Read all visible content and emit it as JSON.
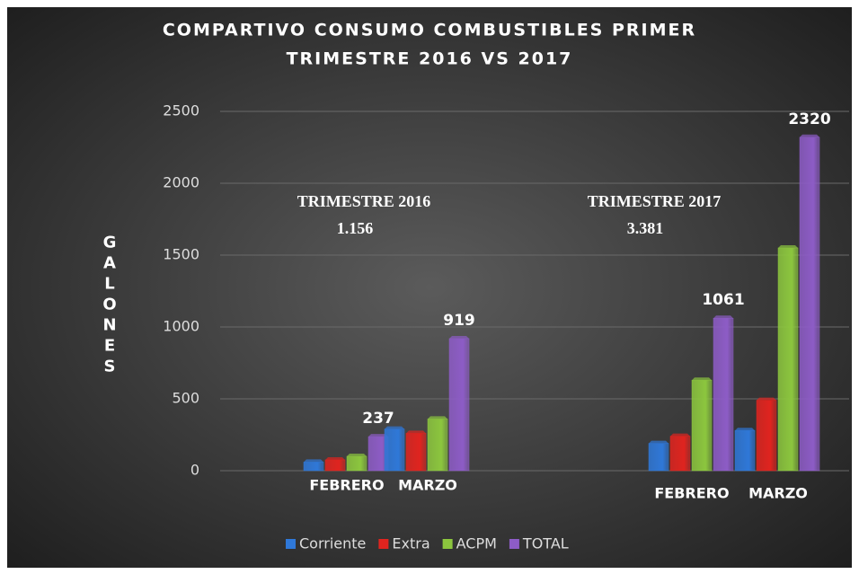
{
  "chart_data": {
    "type": "bar",
    "title": [
      "COMPARTIVO CONSUMO COMBUSTIBLES PRIMER",
      "TRIMESTRE  2016 VS 2017"
    ],
    "ylabel": "GALONES",
    "categories": [
      "FEBRERO",
      "MARZO",
      "FEBRERO",
      "MARZO"
    ],
    "series": [
      {
        "name": "Corriente",
        "color": "#2f78d8",
        "values": [
          60,
          290,
          190,
          280
        ]
      },
      {
        "name": "Extra",
        "color": "#e0241f",
        "values": [
          75,
          260,
          240,
          490
        ]
      },
      {
        "name": "ACPM",
        "color": "#8cc63e",
        "values": [
          100,
          360,
          630,
          1550
        ]
      },
      {
        "name": "TOTAL",
        "color": "#8d5cc6",
        "values": [
          237,
          919,
          1061,
          2320
        ],
        "show_labels": true
      }
    ],
    "annotations": [
      {
        "text": [
          "TRIMESTRE 2016",
          "1.156"
        ]
      },
      {
        "text": [
          "TRIMESTRE  2017",
          "3.381"
        ]
      }
    ],
    "ylim": [
      0,
      2500
    ],
    "yticks": [
      0,
      500,
      1000,
      1500,
      2000,
      2500
    ],
    "grid": true,
    "legend": "bottom"
  }
}
